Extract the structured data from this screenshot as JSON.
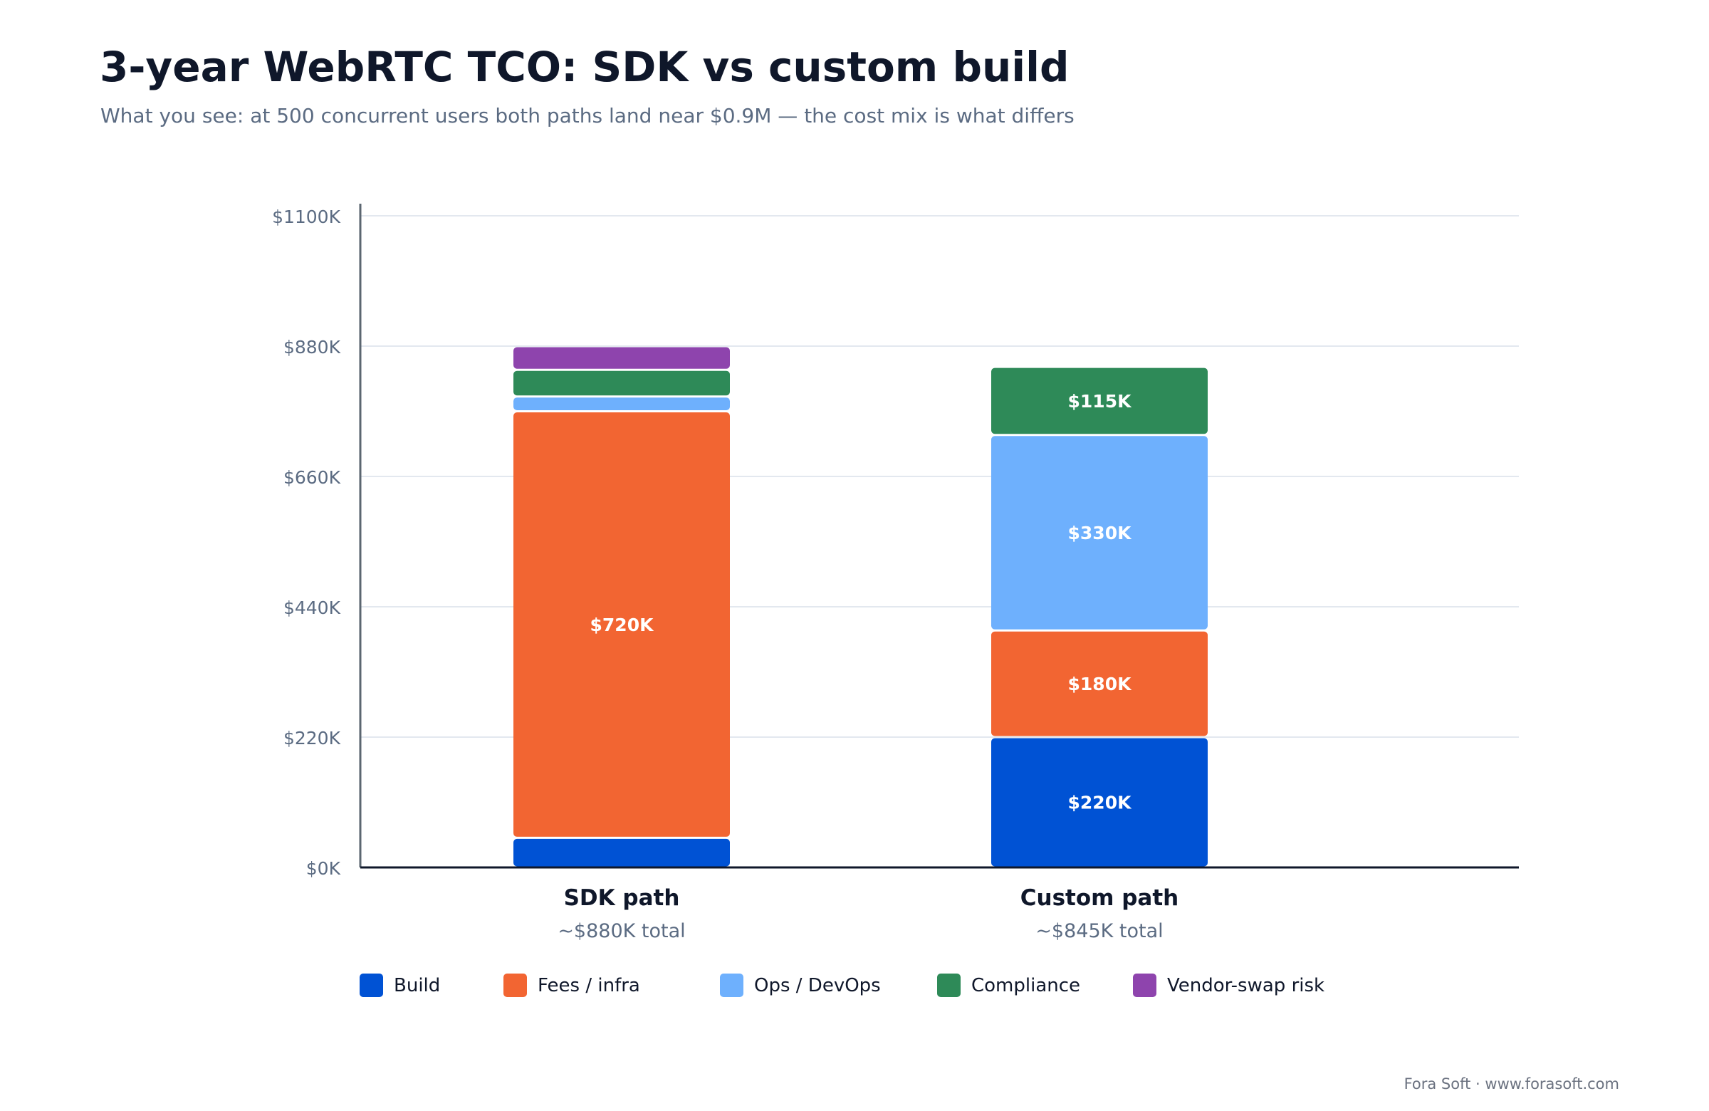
{
  "header": {
    "title": "3-year WebRTC TCO: SDK vs custom build",
    "subtitle": "What you see: at 500 concurrent users both paths land near $0.9M — the cost mix is what differs"
  },
  "chart_data": {
    "type": "bar",
    "stacked": true,
    "title": "3-year WebRTC TCO: SDK vs custom build",
    "subtitle": "What you see: at 500 concurrent users both paths land near $0.9M — the cost mix is what differs",
    "categories": [
      "SDK path",
      "Custom path"
    ],
    "category_sublabels": [
      "~$880K total",
      "~$845K total"
    ],
    "ylim": [
      0,
      1100
    ],
    "y_ticks": [
      0,
      220,
      440,
      660,
      880,
      1100
    ],
    "y_tick_labels": [
      "$0K",
      "$220K",
      "$440K",
      "$660K",
      "$880K",
      "$1100K"
    ],
    "grid": true,
    "legend_position": "bottom",
    "series": [
      {
        "name": "Build",
        "color": "#0052d4",
        "values": [
          50,
          220
        ],
        "labels": [
          "",
          "$220K"
        ]
      },
      {
        "name": "Fees / infra",
        "color": "#f26532",
        "values": [
          720,
          180
        ],
        "labels": [
          "$720K",
          "$180K"
        ]
      },
      {
        "name": "Ops / DevOps",
        "color": "#6eb0fd",
        "values": [
          25,
          330
        ],
        "labels": [
          "",
          "$330K"
        ]
      },
      {
        "name": "Compliance",
        "color": "#2e8a58",
        "values": [
          45,
          115
        ],
        "labels": [
          "",
          "$115K"
        ]
      },
      {
        "name": "Vendor-swap risk",
        "color": "#8e44ad",
        "values": [
          40,
          0
        ],
        "labels": [
          "",
          ""
        ]
      }
    ]
  },
  "footer": {
    "credit": "Fora Soft · www.forasoft.com"
  }
}
